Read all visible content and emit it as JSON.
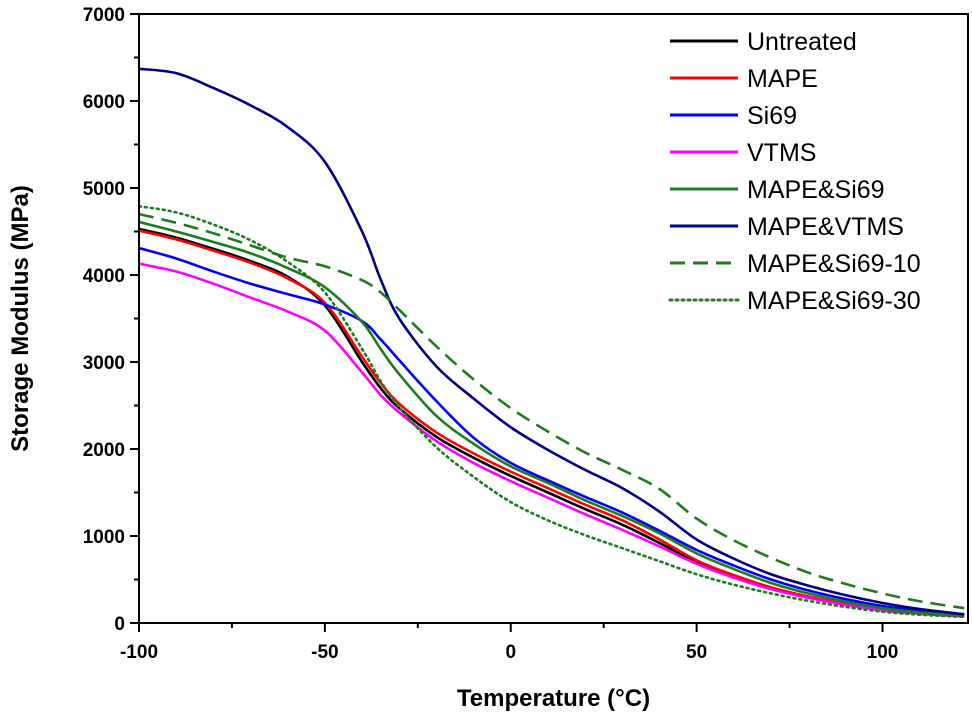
{
  "chart_data": {
    "type": "line",
    "title": "",
    "xlabel": "Temperature (°C)",
    "ylabel": "Storage Modulus (MPa)",
    "xlim": [
      -100,
      123
    ],
    "ylim": [
      0,
      7000
    ],
    "xticks": [
      -100,
      -50,
      0,
      50,
      100
    ],
    "xtick_labels": [
      "-100",
      "-50",
      "0",
      "50",
      "100"
    ],
    "yticks": [
      0,
      1000,
      2000,
      3000,
      4000,
      5000,
      6000,
      7000
    ],
    "ytick_labels": [
      "0",
      "1000",
      "2000",
      "3000",
      "4000",
      "5000",
      "6000",
      "7000"
    ],
    "legend_position": "top-right",
    "x": [
      -100,
      -90,
      -80,
      -70,
      -60,
      -50,
      -40,
      -35,
      -30,
      -20,
      -10,
      0,
      10,
      20,
      30,
      40,
      50,
      60,
      70,
      80,
      90,
      100,
      110,
      122
    ],
    "series": [
      {
        "name": "Untreated",
        "color": "#000000",
        "dash": "solid",
        "values": [
          4530,
          4430,
          4300,
          4160,
          3980,
          3650,
          3000,
          2700,
          2470,
          2140,
          1900,
          1690,
          1500,
          1310,
          1130,
          920,
          700,
          540,
          400,
          300,
          215,
          150,
          110,
          80
        ]
      },
      {
        "name": "MAPE",
        "color": "#ff0000",
        "dash": "solid",
        "values": [
          4510,
          4410,
          4280,
          4140,
          3960,
          3680,
          3060,
          2760,
          2520,
          2190,
          1950,
          1740,
          1550,
          1360,
          1180,
          960,
          720,
          550,
          410,
          305,
          220,
          155,
          112,
          80
        ]
      },
      {
        "name": "Si69",
        "color": "#0000ff",
        "dash": "solid",
        "values": [
          4310,
          4190,
          4040,
          3900,
          3780,
          3660,
          3470,
          3260,
          3020,
          2550,
          2130,
          1840,
          1640,
          1450,
          1270,
          1060,
          840,
          660,
          500,
          375,
          275,
          195,
          140,
          95
        ]
      },
      {
        "name": "VTMS",
        "color": "#ff00ff",
        "dash": "solid",
        "values": [
          4130,
          4040,
          3900,
          3740,
          3580,
          3360,
          2880,
          2620,
          2420,
          2090,
          1840,
          1630,
          1440,
          1250,
          1070,
          880,
          680,
          520,
          390,
          290,
          210,
          145,
          105,
          75
        ]
      },
      {
        "name": "MAPE&Si69",
        "color": "#1e7b1e",
        "dash": "solid",
        "values": [
          4610,
          4500,
          4380,
          4250,
          4080,
          3860,
          3460,
          3150,
          2860,
          2380,
          2060,
          1800,
          1610,
          1410,
          1230,
          1030,
          800,
          620,
          460,
          340,
          245,
          170,
          120,
          85
        ]
      },
      {
        "name": "MAPE&VTMS",
        "color": "#000080",
        "dash": "solid",
        "values": [
          6370,
          6320,
          6150,
          5950,
          5700,
          5300,
          4500,
          3950,
          3500,
          2950,
          2580,
          2250,
          1990,
          1760,
          1550,
          1280,
          960,
          740,
          560,
          430,
          320,
          230,
          160,
          100
        ]
      },
      {
        "name": "MAPE&Si69-10",
        "color": "#1e7b1e",
        "dash": "dashed",
        "values": [
          4700,
          4600,
          4480,
          4340,
          4200,
          4100,
          3940,
          3800,
          3600,
          3180,
          2800,
          2470,
          2200,
          1960,
          1760,
          1540,
          1200,
          950,
          750,
          580,
          450,
          340,
          250,
          170
        ]
      },
      {
        "name": "MAPE&Si69-30",
        "color": "#1e7b1e",
        "dash": "dotted",
        "values": [
          4790,
          4720,
          4580,
          4400,
          4150,
          3800,
          3150,
          2780,
          2480,
          2020,
          1680,
          1390,
          1180,
          1010,
          860,
          710,
          560,
          440,
          340,
          255,
          185,
          130,
          95,
          70
        ]
      }
    ]
  }
}
